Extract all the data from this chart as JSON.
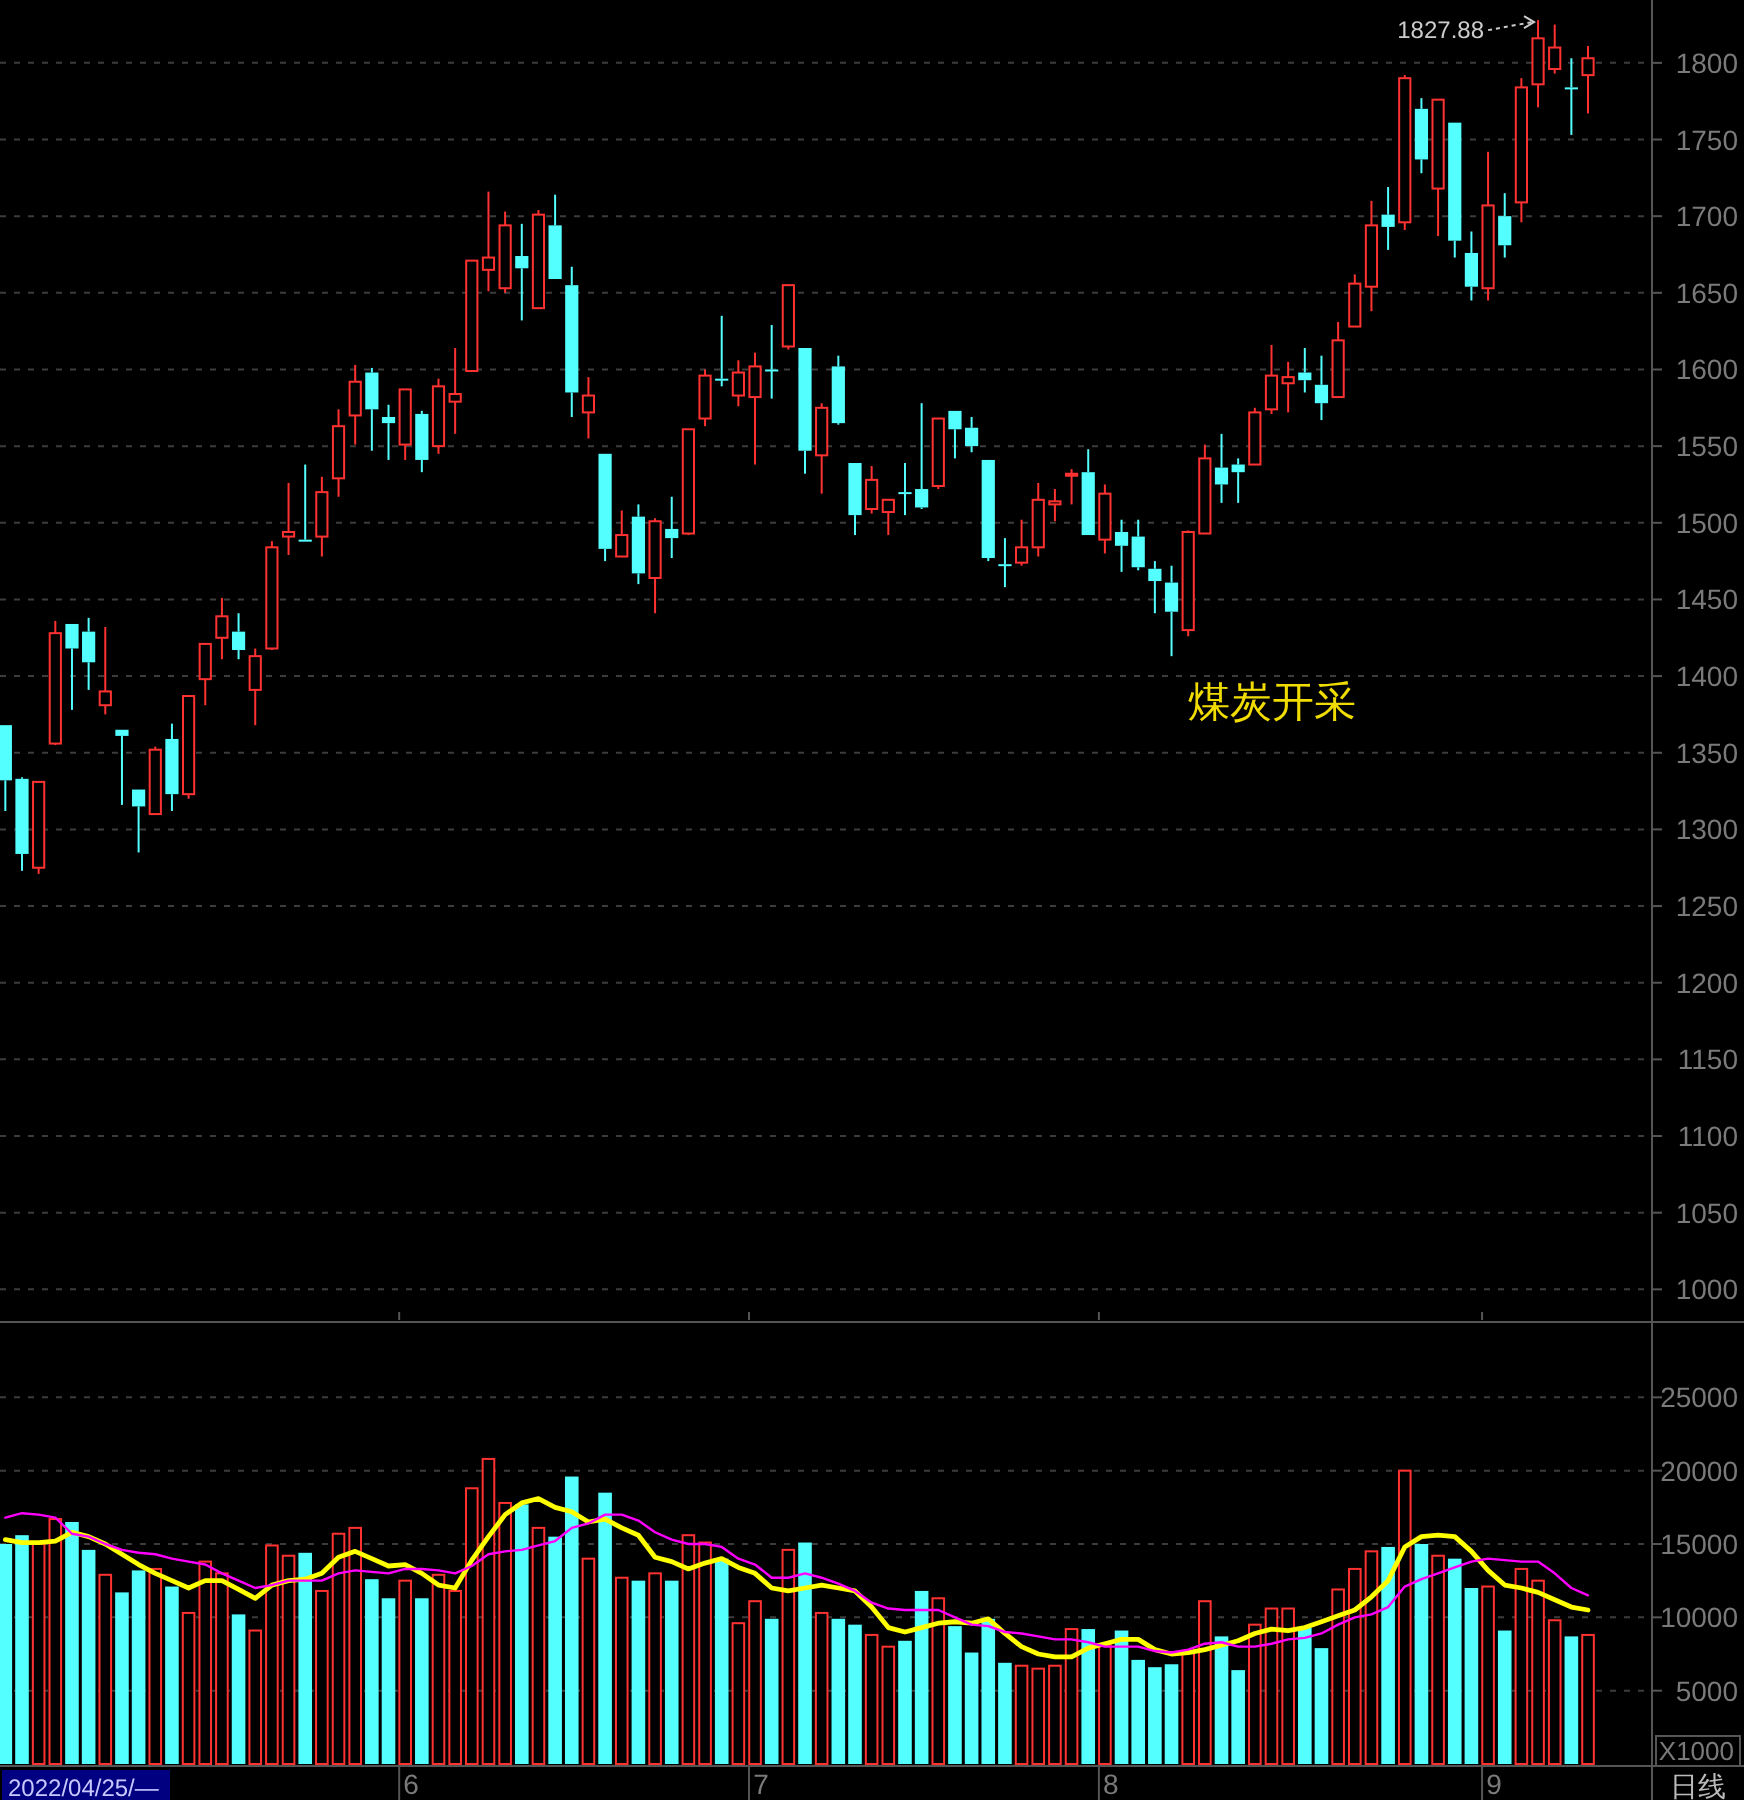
{
  "chart_data": [
    {
      "type": "candlestick",
      "title": "煤炭开采",
      "categories": [
        null,
        null,
        null,
        null,
        null,
        null,
        null,
        null,
        null,
        null,
        null,
        null,
        null,
        null,
        null,
        null,
        null,
        null,
        null,
        null,
        null,
        null,
        null,
        null,
        "6",
        null,
        null,
        null,
        null,
        null,
        null,
        null,
        null,
        null,
        null,
        null,
        null,
        null,
        null,
        null,
        null,
        null,
        null,
        null,
        null,
        "7",
        null,
        null,
        null,
        null,
        null,
        null,
        null,
        null,
        null,
        null,
        null,
        null,
        null,
        null,
        null,
        null,
        null,
        null,
        null,
        null,
        "8",
        null,
        null,
        null,
        null,
        null,
        null,
        null,
        null,
        null,
        null,
        null,
        null,
        null,
        null,
        null,
        null,
        null,
        null,
        null,
        null,
        null,
        null,
        "9",
        null,
        null,
        null,
        null,
        null,
        null
      ],
      "ohlc": [
        [
          1368,
          1368,
          1312,
          1332
        ],
        [
          1333,
          1334,
          1273,
          1284
        ],
        [
          1275,
          1331,
          1271,
          1331
        ],
        [
          1356,
          1436,
          1355,
          1428
        ],
        [
          1434,
          1434,
          1378,
          1418
        ],
        [
          1429,
          1438,
          1391,
          1409
        ],
        [
          1381,
          1432,
          1375,
          1390
        ],
        [
          1365,
          1365,
          1316,
          1361
        ],
        [
          1326,
          1326,
          1285,
          1315
        ],
        [
          1310,
          1354,
          1310,
          1352
        ],
        [
          1359,
          1369,
          1312,
          1323
        ],
        [
          1323,
          1387,
          1320,
          1387
        ],
        [
          1398,
          1421,
          1381,
          1421
        ],
        [
          1425,
          1451,
          1411,
          1439
        ],
        [
          1429,
          1441,
          1411,
          1417
        ],
        [
          1391,
          1418,
          1368,
          1413
        ],
        [
          1418,
          1488,
          1417,
          1484
        ],
        [
          1491,
          1526,
          1479,
          1494
        ],
        [
          1489,
          1538,
          1488,
          1488
        ],
        [
          1491,
          1530,
          1478,
          1520
        ],
        [
          1529,
          1574,
          1517,
          1563
        ],
        [
          1570,
          1603,
          1551,
          1592
        ],
        [
          1598,
          1601,
          1547,
          1574
        ],
        [
          1569,
          1577,
          1541,
          1565
        ],
        [
          1551,
          1587,
          1541,
          1587
        ],
        [
          1571,
          1573,
          1533,
          1541
        ],
        [
          1550,
          1594,
          1545,
          1589
        ],
        [
          1579,
          1614,
          1558,
          1584
        ],
        [
          1599,
          1671,
          1599,
          1671
        ],
        [
          1665,
          1716,
          1651,
          1673
        ],
        [
          1653,
          1703,
          1650,
          1694
        ],
        [
          1674,
          1695,
          1632,
          1666
        ],
        [
          1640,
          1704,
          1640,
          1701
        ],
        [
          1694,
          1714,
          1659,
          1659
        ],
        [
          1655,
          1667,
          1569,
          1585
        ],
        [
          1572,
          1595,
          1555,
          1583
        ],
        [
          1545,
          1545,
          1475,
          1483
        ],
        [
          1478,
          1508,
          1478,
          1492
        ],
        [
          1504,
          1512,
          1460,
          1467
        ],
        [
          1464,
          1503,
          1441,
          1501
        ],
        [
          1496,
          1517,
          1477,
          1490
        ],
        [
          1493,
          1561,
          1492,
          1561
        ],
        [
          1568,
          1600,
          1563,
          1596
        ],
        [
          1594,
          1635,
          1589,
          1593
        ],
        [
          1583,
          1606,
          1576,
          1598
        ],
        [
          1582,
          1611,
          1538,
          1602
        ],
        [
          1600,
          1629,
          1581,
          1599
        ],
        [
          1615,
          1655,
          1613,
          1655
        ],
        [
          1614,
          1614,
          1532,
          1547
        ],
        [
          1544,
          1578,
          1519,
          1575
        ],
        [
          1602,
          1609,
          1564,
          1565
        ],
        [
          1539,
          1539,
          1492,
          1505
        ],
        [
          1509,
          1537,
          1506,
          1528
        ],
        [
          1507,
          1515,
          1492,
          1515
        ],
        [
          1520,
          1539,
          1505,
          1519
        ],
        [
          1522,
          1578,
          1509,
          1510
        ],
        [
          1524,
          1568,
          1522,
          1568
        ],
        [
          1573,
          1573,
          1542,
          1561
        ],
        [
          1562,
          1569,
          1546,
          1550
        ],
        [
          1541,
          1541,
          1475,
          1477
        ],
        [
          1473,
          1490,
          1458,
          1472
        ],
        [
          1474,
          1502,
          1472,
          1484
        ],
        [
          1484,
          1526,
          1478,
          1515
        ],
        [
          1512,
          1522,
          1501,
          1514
        ],
        [
          1531,
          1535,
          1512,
          1532
        ],
        [
          1533,
          1548,
          1492,
          1492
        ],
        [
          1489,
          1525,
          1480,
          1519
        ],
        [
          1494,
          1502,
          1468,
          1485
        ],
        [
          1491,
          1502,
          1469,
          1471
        ],
        [
          1470,
          1475,
          1441,
          1462
        ],
        [
          1461,
          1472,
          1413,
          1442
        ],
        [
          1430,
          1495,
          1426,
          1494
        ],
        [
          1493,
          1551,
          1493,
          1542
        ],
        [
          1536,
          1558,
          1513,
          1525
        ],
        [
          1538,
          1542,
          1513,
          1533
        ],
        [
          1538,
          1575,
          1538,
          1572
        ],
        [
          1574,
          1616,
          1571,
          1596
        ],
        [
          1591,
          1605,
          1572,
          1595
        ],
        [
          1598,
          1614,
          1585,
          1593
        ],
        [
          1590,
          1609,
          1567,
          1578
        ],
        [
          1582,
          1631,
          1582,
          1619
        ],
        [
          1628,
          1662,
          1628,
          1656
        ],
        [
          1654,
          1710,
          1638,
          1694
        ],
        [
          1701,
          1719,
          1678,
          1693
        ],
        [
          1696,
          1792,
          1691,
          1790
        ],
        [
          1770,
          1777,
          1728,
          1737
        ],
        [
          1718,
          1776,
          1687,
          1776
        ],
        [
          1761,
          1761,
          1673,
          1684
        ],
        [
          1676,
          1690,
          1645,
          1654
        ],
        [
          1653,
          1742,
          1645,
          1707
        ],
        [
          1700,
          1715,
          1673,
          1681
        ],
        [
          1709,
          1790,
          1696,
          1784
        ],
        [
          1786,
          1827.88,
          1771,
          1816
        ],
        [
          1796,
          1825,
          1793,
          1810
        ],
        [
          1784,
          1803,
          1753,
          1783
        ],
        [
          1792,
          1811,
          1767,
          1803
        ]
      ],
      "colors": [
        "#54ffff",
        "#54ffff",
        "#ff3232",
        "#ff3232",
        "#54ffff",
        "#54ffff",
        "#ff3232",
        "#54ffff",
        "#54ffff",
        "#ff3232",
        "#54ffff",
        "#ff3232",
        "#ff3232",
        "#ff3232",
        "#54ffff",
        "#ff3232",
        "#ff3232",
        "#ff3232",
        "#54ffff",
        "#ff3232",
        "#ff3232",
        "#ff3232",
        "#54ffff",
        "#54ffff",
        "#ff3232",
        "#54ffff",
        "#ff3232",
        "#ff3232",
        "#ff3232",
        "#ff3232",
        "#ff3232",
        "#54ffff",
        "#ff3232",
        "#54ffff",
        "#54ffff",
        "#ff3232",
        "#54ffff",
        "#ff3232",
        "#54ffff",
        "#ff3232",
        "#54ffff",
        "#ff3232",
        "#ff3232",
        "#54ffff",
        "#ff3232",
        "#ff3232",
        "#54ffff",
        "#ff3232",
        "#54ffff",
        "#ff3232",
        "#54ffff",
        "#54ffff",
        "#ff3232",
        "#ff3232",
        "#54ffff",
        "#54ffff",
        "#ff3232",
        "#54ffff",
        "#54ffff",
        "#54ffff",
        "#54ffff",
        "#ff3232",
        "#ff3232",
        "#ff3232",
        "#ff3232",
        "#54ffff",
        "#ff3232",
        "#54ffff",
        "#54ffff",
        "#54ffff",
        "#54ffff",
        "#ff3232",
        "#ff3232",
        "#54ffff",
        "#54ffff",
        "#ff3232",
        "#ff3232",
        "#ff3232",
        "#54ffff",
        "#54ffff",
        "#ff3232",
        "#ff3232",
        "#ff3232",
        "#54ffff",
        "#ff3232",
        "#54ffff",
        "#ff3232",
        "#54ffff",
        "#54ffff",
        "#ff3232",
        "#54ffff",
        "#ff3232",
        "#ff3232",
        "#ff3232",
        "#54ffff",
        "#ff3232"
      ],
      "ylim": [
        980,
        1841
      ],
      "yticks": [
        1000,
        1050,
        1100,
        1150,
        1200,
        1250,
        1300,
        1350,
        1400,
        1450,
        1500,
        1550,
        1600,
        1650,
        1700,
        1750,
        1800
      ],
      "grid": "y",
      "tick_labels": "y",
      "annotations": [
        "1827.88"
      ]
    },
    {
      "type": "bar",
      "categories": [
        null,
        null,
        null,
        null,
        null,
        null,
        null,
        null,
        null,
        null,
        null,
        null,
        null,
        null,
        null,
        null,
        null,
        null,
        null,
        null,
        null,
        null,
        null,
        null,
        "6",
        null,
        null,
        null,
        null,
        null,
        null,
        null,
        null,
        null,
        null,
        null,
        null,
        null,
        null,
        null,
        null,
        null,
        null,
        null,
        null,
        "7",
        null,
        null,
        null,
        null,
        null,
        null,
        null,
        null,
        null,
        null,
        null,
        null,
        null,
        null,
        null,
        null,
        null,
        null,
        null,
        null,
        "8",
        null,
        null,
        null,
        null,
        null,
        null,
        null,
        null,
        null,
        null,
        null,
        null,
        null,
        null,
        null,
        null,
        null,
        null,
        null,
        null,
        null,
        null,
        "9",
        null,
        null,
        null,
        null,
        null,
        null
      ],
      "series": [
        {
          "values": [
            15000,
            15600,
            15000,
            16700,
            16500,
            14600,
            12900,
            11700,
            13200,
            13300,
            12100,
            10300,
            13800,
            13000,
            10200,
            9100,
            14900,
            14200,
            14400,
            11800,
            15700,
            16100,
            12600,
            11300,
            12500,
            11300,
            12900,
            11800,
            18800,
            20800,
            17800,
            17700,
            16100,
            15500,
            19600,
            14000,
            18500,
            12700,
            12500,
            13000,
            12500,
            15600,
            15100,
            14000,
            9600,
            11100,
            9900,
            14600,
            15100,
            10300,
            9900,
            9500,
            8800,
            8000,
            8400,
            11800,
            11300,
            9400,
            7600,
            9900,
            6900,
            6700,
            6500,
            6700,
            9200,
            9200,
            8100,
            9100,
            7100,
            6600,
            6800,
            7700,
            11100,
            8700,
            6400,
            9500,
            10600,
            10600,
            9300,
            7900,
            11900,
            13300,
            14500,
            14800,
            20000,
            15000,
            14200,
            14000,
            12000,
            12100,
            9100,
            13300,
            12500,
            9800,
            8700,
            8800
          ],
          "colors": [
            "#54ffff",
            "#54ffff",
            "#ff3232",
            "#ff3232",
            "#54ffff",
            "#54ffff",
            "#ff3232",
            "#54ffff",
            "#54ffff",
            "#ff3232",
            "#54ffff",
            "#ff3232",
            "#ff3232",
            "#ff3232",
            "#54ffff",
            "#ff3232",
            "#ff3232",
            "#ff3232",
            "#54ffff",
            "#ff3232",
            "#ff3232",
            "#ff3232",
            "#54ffff",
            "#54ffff",
            "#ff3232",
            "#54ffff",
            "#ff3232",
            "#ff3232",
            "#ff3232",
            "#ff3232",
            "#ff3232",
            "#54ffff",
            "#ff3232",
            "#54ffff",
            "#54ffff",
            "#ff3232",
            "#54ffff",
            "#ff3232",
            "#54ffff",
            "#ff3232",
            "#54ffff",
            "#ff3232",
            "#ff3232",
            "#54ffff",
            "#ff3232",
            "#ff3232",
            "#54ffff",
            "#ff3232",
            "#54ffff",
            "#ff3232",
            "#54ffff",
            "#54ffff",
            "#ff3232",
            "#ff3232",
            "#54ffff",
            "#54ffff",
            "#ff3232",
            "#54ffff",
            "#54ffff",
            "#54ffff",
            "#54ffff",
            "#ff3232",
            "#ff3232",
            "#ff3232",
            "#ff3232",
            "#54ffff",
            "#ff3232",
            "#54ffff",
            "#54ffff",
            "#54ffff",
            "#54ffff",
            "#ff3232",
            "#ff3232",
            "#54ffff",
            "#54ffff",
            "#ff3232",
            "#ff3232",
            "#ff3232",
            "#54ffff",
            "#54ffff",
            "#ff3232",
            "#ff3232",
            "#ff3232",
            "#54ffff",
            "#ff3232",
            "#54ffff",
            "#ff3232",
            "#54ffff",
            "#54ffff",
            "#ff3232",
            "#54ffff",
            "#ff3232",
            "#ff3232",
            "#ff3232",
            "#54ffff",
            "#ff3232"
          ]
        },
        {
          "type": "line",
          "color": "#ffff00",
          "values": [
            15300,
            15100,
            15100,
            15200,
            15800,
            15500,
            15000,
            14300,
            13600,
            13000,
            12500,
            12000,
            12500,
            12500,
            11900,
            11300,
            12200,
            12500,
            12600,
            13000,
            14100,
            14500,
            14000,
            13500,
            13600,
            13000,
            12200,
            12000,
            13900,
            15500,
            17000,
            17800,
            18100,
            17500,
            17200,
            16500,
            16700,
            16100,
            15600,
            14100,
            13800,
            13300,
            13700,
            14000,
            13400,
            13000,
            12000,
            11800,
            12000,
            12200,
            12000,
            11800,
            10700,
            9300,
            9000,
            9300,
            9600,
            9700,
            9600,
            9900,
            8900,
            8000,
            7500,
            7300,
            7300,
            7900,
            8200,
            8500,
            8500,
            7800,
            7500,
            7600,
            7800,
            8100,
            8400,
            8900,
            9200,
            9100,
            9300,
            9700,
            10100,
            10500,
            11400,
            12500,
            14800,
            15500,
            15600,
            15500,
            14500,
            13200,
            12200,
            12000,
            11700,
            11200,
            10700,
            10500
          ]
        },
        {
          "type": "line",
          "color": "#ff00ff",
          "values": [
            16800,
            17100,
            17000,
            16800,
            15700,
            15500,
            15000,
            14600,
            14400,
            14300,
            14000,
            13800,
            13600,
            13000,
            12500,
            12000,
            12200,
            12500,
            12500,
            12500,
            13000,
            13200,
            13100,
            13000,
            13300,
            13300,
            13200,
            13000,
            13500,
            14300,
            14500,
            14600,
            14900,
            15200,
            16100,
            16400,
            17000,
            17000,
            16600,
            15800,
            15300,
            15000,
            15000,
            14800,
            14000,
            13600,
            12700,
            12700,
            13000,
            12700,
            12300,
            11800,
            11000,
            10600,
            10500,
            10500,
            10500,
            10000,
            9500,
            9400,
            9000,
            8900,
            8700,
            8500,
            8500,
            8300,
            8000,
            8000,
            8000,
            7700,
            7600,
            7800,
            8200,
            8300,
            8000,
            8000,
            8200,
            8500,
            8600,
            8900,
            9500,
            10000,
            10200,
            10700,
            12100,
            12600,
            13000,
            13400,
            13800,
            14000,
            13900,
            13800,
            13800,
            13000,
            12000,
            11500
          ]
        }
      ],
      "ylim": [
        0,
        30000
      ],
      "yticks": [
        5000,
        10000,
        15000,
        20000,
        25000
      ],
      "ylabel": "X1000",
      "grid": "y",
      "annotations": [
        "2022/04/25/—",
        "日线"
      ]
    }
  ]
}
